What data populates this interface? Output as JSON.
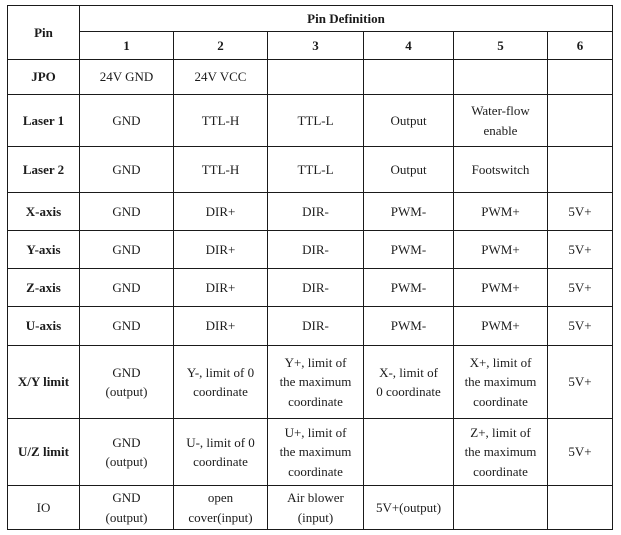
{
  "table": {
    "corner_label": "Pin",
    "title": "Pin Definition",
    "pin_numbers": [
      "1",
      "2",
      "3",
      "4",
      "5",
      "6"
    ],
    "rows": [
      {
        "label": "JPO",
        "bold": true,
        "cells": [
          "24V GND",
          "24V VCC",
          "",
          "",
          "",
          ""
        ]
      },
      {
        "label": "Laser 1",
        "bold": true,
        "cells": [
          "GND",
          "TTL-H",
          "TTL-L",
          "Output",
          "Water-flow\nenable",
          ""
        ],
        "cell_aligns": [
          null,
          null,
          null,
          "left",
          null,
          null
        ]
      },
      {
        "label": "Laser 2",
        "bold": true,
        "cells": [
          "GND",
          "TTL-H",
          "TTL-L",
          "Output",
          "Footswitch",
          ""
        ],
        "cell_aligns": [
          null,
          null,
          null,
          "left",
          null,
          null
        ]
      },
      {
        "label": "X-axis",
        "bold": true,
        "cells": [
          "GND",
          "DIR+",
          "DIR-",
          "PWM-",
          "PWM+",
          "5V+"
        ]
      },
      {
        "label": "Y-axis",
        "bold": true,
        "cells": [
          "GND",
          "DIR+",
          "DIR-",
          "PWM-",
          "PWM+",
          "5V+"
        ]
      },
      {
        "label": "Z-axis",
        "bold": true,
        "cells": [
          "GND",
          "DIR+",
          "DIR-",
          "PWM-",
          "PWM+",
          "5V+"
        ]
      },
      {
        "label": "U-axis",
        "bold": true,
        "cells": [
          "GND",
          "DIR+",
          "DIR-",
          "PWM-",
          "PWM+",
          "5V+"
        ]
      },
      {
        "label": "X/Y limit",
        "bold": true,
        "cells": [
          "GND\n(output)",
          "Y-, limit of 0\ncoordinate",
          "Y+, limit of\nthe maximum\ncoordinate",
          "X-, limit of\n0 coordinate",
          "X+, limit of\nthe maximum\ncoordinate",
          "5V+"
        ]
      },
      {
        "label": "U/Z limit",
        "bold": true,
        "cells": [
          "GND\n(output)",
          "U-, limit of 0\ncoordinate",
          "U+, limit of\nthe maximum\ncoordinate",
          "",
          "Z+, limit of\nthe maximum\ncoordinate",
          "5V+"
        ]
      },
      {
        "label": "IO",
        "bold": false,
        "cells": [
          "GND\n(output)",
          "open\ncover(input)",
          "Air blower\n(input)",
          "5V+(output)",
          "",
          ""
        ]
      }
    ]
  }
}
